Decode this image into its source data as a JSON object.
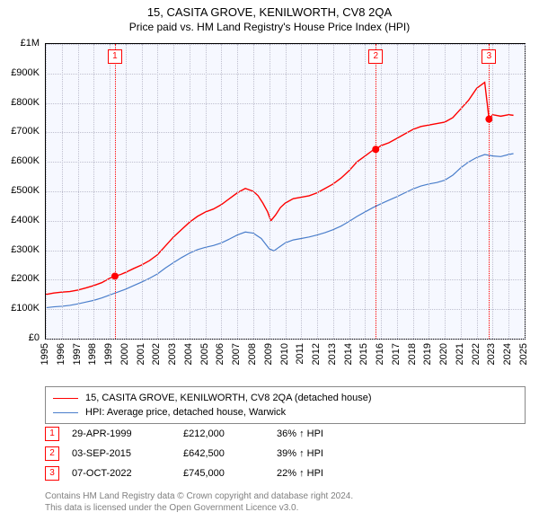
{
  "title": "15, CASITA GROVE, KENILWORTH, CV8 2QA",
  "subtitle": "Price paid vs. HM Land Registry's House Price Index (HPI)",
  "chart": {
    "type": "line",
    "background_color": "#f6f8ff",
    "border_color": "#000000",
    "grid_color": "#bfbfcf",
    "x_years": [
      1995,
      1996,
      1997,
      1998,
      1999,
      2000,
      2001,
      2002,
      2003,
      2004,
      2005,
      2006,
      2007,
      2008,
      2009,
      2010,
      2011,
      2012,
      2013,
      2014,
      2015,
      2016,
      2017,
      2018,
      2019,
      2020,
      2021,
      2022,
      2023,
      2024,
      2025
    ],
    "x_min": 1995,
    "x_max": 2025,
    "y_min": 0,
    "y_max": 1000000,
    "y_ticks": [
      0,
      100000,
      200000,
      300000,
      400000,
      500000,
      600000,
      700000,
      800000,
      900000,
      1000000
    ],
    "y_tick_labels": [
      "£0",
      "£100K",
      "£200K",
      "£300K",
      "£400K",
      "£500K",
      "£600K",
      "£700K",
      "£800K",
      "£900K",
      "£1M"
    ],
    "axis_fontsize": 11,
    "series_a": {
      "label": "15, CASITA GROVE, KENILWORTH, CV8 2QA (detached house)",
      "color": "#ff0000",
      "line_width": 1.4,
      "data": [
        [
          1995.0,
          150000
        ],
        [
          1995.5,
          155000
        ],
        [
          1996.0,
          158000
        ],
        [
          1996.5,
          160000
        ],
        [
          1997.0,
          165000
        ],
        [
          1997.5,
          172000
        ],
        [
          1998.0,
          180000
        ],
        [
          1998.5,
          190000
        ],
        [
          1999.0,
          205000
        ],
        [
          1999.33,
          212000
        ],
        [
          1999.7,
          218000
        ],
        [
          2000.0,
          225000
        ],
        [
          2000.5,
          238000
        ],
        [
          2001.0,
          250000
        ],
        [
          2001.5,
          265000
        ],
        [
          2002.0,
          285000
        ],
        [
          2002.5,
          315000
        ],
        [
          2003.0,
          345000
        ],
        [
          2003.5,
          370000
        ],
        [
          2004.0,
          395000
        ],
        [
          2004.5,
          415000
        ],
        [
          2005.0,
          430000
        ],
        [
          2005.5,
          440000
        ],
        [
          2006.0,
          455000
        ],
        [
          2006.5,
          475000
        ],
        [
          2007.0,
          495000
        ],
        [
          2007.5,
          510000
        ],
        [
          2008.0,
          500000
        ],
        [
          2008.3,
          485000
        ],
        [
          2008.6,
          460000
        ],
        [
          2008.9,
          430000
        ],
        [
          2009.1,
          400000
        ],
        [
          2009.4,
          420000
        ],
        [
          2009.7,
          445000
        ],
        [
          2010.0,
          460000
        ],
        [
          2010.5,
          475000
        ],
        [
          2011.0,
          480000
        ],
        [
          2011.5,
          485000
        ],
        [
          2012.0,
          495000
        ],
        [
          2012.5,
          510000
        ],
        [
          2013.0,
          525000
        ],
        [
          2013.5,
          545000
        ],
        [
          2014.0,
          570000
        ],
        [
          2014.5,
          600000
        ],
        [
          2015.0,
          620000
        ],
        [
          2015.5,
          640000
        ],
        [
          2015.67,
          642500
        ],
        [
          2016.0,
          655000
        ],
        [
          2016.5,
          665000
        ],
        [
          2017.0,
          680000
        ],
        [
          2017.5,
          695000
        ],
        [
          2018.0,
          710000
        ],
        [
          2018.5,
          720000
        ],
        [
          2019.0,
          725000
        ],
        [
          2019.5,
          730000
        ],
        [
          2020.0,
          735000
        ],
        [
          2020.5,
          750000
        ],
        [
          2021.0,
          780000
        ],
        [
          2021.5,
          810000
        ],
        [
          2022.0,
          850000
        ],
        [
          2022.5,
          870000
        ],
        [
          2022.77,
          745000
        ],
        [
          2023.0,
          760000
        ],
        [
          2023.5,
          755000
        ],
        [
          2024.0,
          760000
        ],
        [
          2024.3,
          758000
        ]
      ]
    },
    "series_b": {
      "label": "HPI: Average price, detached house, Warwick",
      "color": "#4a7ecb",
      "line_width": 1.2,
      "data": [
        [
          1995.0,
          105000
        ],
        [
          1995.5,
          108000
        ],
        [
          1996.0,
          110000
        ],
        [
          1996.5,
          113000
        ],
        [
          1997.0,
          118000
        ],
        [
          1997.5,
          124000
        ],
        [
          1998.0,
          130000
        ],
        [
          1998.5,
          138000
        ],
        [
          1999.0,
          148000
        ],
        [
          1999.5,
          158000
        ],
        [
          2000.0,
          168000
        ],
        [
          2000.5,
          180000
        ],
        [
          2001.0,
          192000
        ],
        [
          2001.5,
          205000
        ],
        [
          2002.0,
          220000
        ],
        [
          2002.5,
          240000
        ],
        [
          2003.0,
          258000
        ],
        [
          2003.5,
          275000
        ],
        [
          2004.0,
          290000
        ],
        [
          2004.5,
          302000
        ],
        [
          2005.0,
          310000
        ],
        [
          2005.5,
          316000
        ],
        [
          2006.0,
          325000
        ],
        [
          2006.5,
          338000
        ],
        [
          2007.0,
          352000
        ],
        [
          2007.5,
          362000
        ],
        [
          2008.0,
          358000
        ],
        [
          2008.5,
          340000
        ],
        [
          2009.0,
          305000
        ],
        [
          2009.3,
          298000
        ],
        [
          2009.6,
          310000
        ],
        [
          2010.0,
          325000
        ],
        [
          2010.5,
          335000
        ],
        [
          2011.0,
          340000
        ],
        [
          2011.5,
          345000
        ],
        [
          2012.0,
          352000
        ],
        [
          2012.5,
          360000
        ],
        [
          2013.0,
          370000
        ],
        [
          2013.5,
          382000
        ],
        [
          2014.0,
          398000
        ],
        [
          2014.5,
          415000
        ],
        [
          2015.0,
          430000
        ],
        [
          2015.5,
          445000
        ],
        [
          2016.0,
          458000
        ],
        [
          2016.5,
          470000
        ],
        [
          2017.0,
          482000
        ],
        [
          2017.5,
          495000
        ],
        [
          2018.0,
          508000
        ],
        [
          2018.5,
          518000
        ],
        [
          2019.0,
          525000
        ],
        [
          2019.5,
          530000
        ],
        [
          2020.0,
          538000
        ],
        [
          2020.5,
          555000
        ],
        [
          2021.0,
          580000
        ],
        [
          2021.5,
          600000
        ],
        [
          2022.0,
          615000
        ],
        [
          2022.5,
          625000
        ],
        [
          2023.0,
          620000
        ],
        [
          2023.5,
          618000
        ],
        [
          2024.0,
          625000
        ],
        [
          2024.3,
          628000
        ]
      ]
    },
    "transactions": [
      {
        "n": "1",
        "x": 1999.33,
        "color": "#ff0000"
      },
      {
        "n": "2",
        "x": 2015.67,
        "color": "#ff0000"
      },
      {
        "n": "3",
        "x": 2022.77,
        "color": "#ff0000"
      }
    ],
    "txn_markers": [
      {
        "x": 1999.33,
        "y": 212000,
        "color": "#ff0000",
        "r": 4
      },
      {
        "x": 2015.67,
        "y": 642500,
        "color": "#ff0000",
        "r": 4
      },
      {
        "x": 2022.77,
        "y": 745000,
        "color": "#ff0000",
        "r": 4
      }
    ]
  },
  "legend": {
    "border_color": "#888888",
    "a_label": "15, CASITA GROVE, KENILWORTH, CV8 2QA (detached house)",
    "b_label": "HPI: Average price, detached house, Warwick"
  },
  "txn_table": [
    {
      "n": "1",
      "date": "29-APR-1999",
      "price": "£212,000",
      "pct": "36% ↑ HPI"
    },
    {
      "n": "2",
      "date": "03-SEP-2015",
      "price": "£642,500",
      "pct": "39% ↑ HPI"
    },
    {
      "n": "3",
      "date": "07-OCT-2022",
      "price": "£745,000",
      "pct": "22% ↑ HPI"
    }
  ],
  "footer": {
    "line1": "Contains HM Land Registry data © Crown copyright and database right 2024.",
    "line2": "This data is licensed under the Open Government Licence v3.0."
  }
}
